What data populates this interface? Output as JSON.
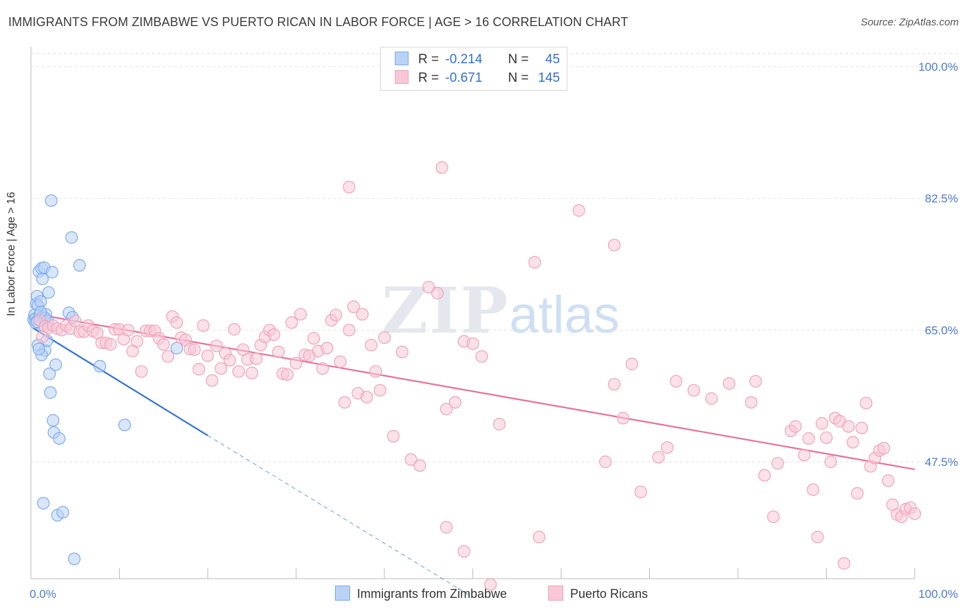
{
  "chart_data": {
    "type": "scatter",
    "title": "IMMIGRANTS FROM ZIMBABWE VS PUERTO RICAN IN LABOR FORCE | AGE > 16 CORRELATION CHART",
    "source": "Source: ZipAtlas.com",
    "ylabel": "In Labor Force | Age > 16",
    "xlabel": "",
    "xlim": [
      0,
      100
    ],
    "ylim": [
      30,
      102
    ],
    "y_ticks": [
      {
        "value": 100.0,
        "label": "100.0%"
      },
      {
        "value": 82.5,
        "label": "82.5%"
      },
      {
        "value": 65.0,
        "label": "65.0%"
      },
      {
        "value": 47.5,
        "label": "47.5%"
      }
    ],
    "x_tick_labels": {
      "min": "0.0%",
      "max": "100.0%"
    },
    "watermark": {
      "zip": "ZIP",
      "atlas": "atlas"
    },
    "series": [
      {
        "name": "Immigrants from Zimbabwe",
        "color": "#7aaaf0",
        "fill": "#b9d2f5",
        "line_color": "#2f6fd3",
        "R": "-0.214",
        "N": "45",
        "trend": {
          "x0": 0.2,
          "y0": 65.3,
          "x1": 20,
          "y1": 51.0,
          "dash_x1": 50,
          "dash_y1": 29.5
        },
        "points": [
          [
            0.3,
            66.4
          ],
          [
            0.4,
            67.0
          ],
          [
            0.5,
            66.5
          ],
          [
            0.6,
            68.5
          ],
          [
            0.7,
            69.5
          ],
          [
            0.8,
            68.3
          ],
          [
            0.9,
            72.8
          ],
          [
            1.0,
            67.0
          ],
          [
            1.1,
            68.8
          ],
          [
            1.2,
            73.2
          ],
          [
            1.3,
            71.8
          ],
          [
            1.4,
            66.8
          ],
          [
            1.5,
            73.3
          ],
          [
            1.6,
            62.3
          ],
          [
            1.7,
            67.1
          ],
          [
            1.8,
            63.6
          ],
          [
            1.9,
            66.2
          ],
          [
            2.0,
            70.0
          ],
          [
            2.1,
            59.2
          ],
          [
            2.2,
            56.7
          ],
          [
            2.3,
            82.2
          ],
          [
            2.4,
            72.7
          ],
          [
            2.5,
            53.0
          ],
          [
            2.6,
            51.4
          ],
          [
            2.8,
            60.4
          ],
          [
            3.0,
            40.4
          ],
          [
            3.2,
            50.6
          ],
          [
            0.8,
            63.0
          ],
          [
            1.2,
            61.7
          ],
          [
            1.3,
            65.7
          ],
          [
            1.4,
            42.0
          ],
          [
            3.6,
            40.8
          ],
          [
            4.3,
            67.3
          ],
          [
            4.6,
            77.3
          ],
          [
            4.7,
            66.7
          ],
          [
            4.9,
            34.6
          ],
          [
            5.5,
            73.6
          ],
          [
            7.8,
            60.2
          ],
          [
            10.6,
            52.4
          ],
          [
            16.5,
            62.6
          ],
          [
            0.5,
            66.0
          ],
          [
            0.9,
            62.5
          ],
          [
            1.6,
            66.6
          ],
          [
            1.1,
            67.4
          ],
          [
            0.7,
            66.1
          ]
        ]
      },
      {
        "name": "Puerto Ricans",
        "color": "#f0a2bb",
        "fill": "#f8c8d6",
        "line_color": "#e76f9a",
        "R": "-0.671",
        "N": "145",
        "trend": {
          "x0": 0.2,
          "y0": 67.2,
          "x1": 100,
          "y1": 46.5
        },
        "points": [
          [
            1.0,
            66.3
          ],
          [
            1.3,
            64.1
          ],
          [
            1.6,
            65.5
          ],
          [
            2.0,
            65.3
          ],
          [
            2.5,
            65.6
          ],
          [
            3.0,
            65.2
          ],
          [
            3.5,
            65.0
          ],
          [
            4.0,
            65.6
          ],
          [
            4.5,
            65.2
          ],
          [
            5.0,
            66.2
          ],
          [
            5.5,
            64.8
          ],
          [
            6.0,
            64.8
          ],
          [
            6.5,
            65.6
          ],
          [
            7.0,
            64.9
          ],
          [
            7.5,
            64.6
          ],
          [
            8.0,
            63.3
          ],
          [
            8.5,
            63.3
          ],
          [
            9.0,
            63.1
          ],
          [
            9.5,
            65.1
          ],
          [
            10.0,
            65.1
          ],
          [
            10.5,
            63.8
          ],
          [
            11.0,
            65.0
          ],
          [
            11.5,
            62.2
          ],
          [
            12.0,
            63.5
          ],
          [
            12.5,
            59.5
          ],
          [
            13.0,
            64.9
          ],
          [
            13.5,
            64.9
          ],
          [
            14.0,
            64.9
          ],
          [
            14.5,
            63.9
          ],
          [
            15.0,
            63.1
          ],
          [
            15.5,
            61.5
          ],
          [
            16.0,
            66.8
          ],
          [
            16.5,
            66.0
          ],
          [
            17.0,
            64.0
          ],
          [
            17.5,
            63.7
          ],
          [
            18.0,
            62.5
          ],
          [
            18.5,
            62.4
          ],
          [
            19.0,
            59.8
          ],
          [
            19.5,
            65.6
          ],
          [
            20.0,
            61.6
          ],
          [
            20.5,
            58.3
          ],
          [
            21.0,
            62.9
          ],
          [
            21.5,
            59.9
          ],
          [
            22.0,
            61.9
          ],
          [
            22.5,
            61.0
          ],
          [
            23.0,
            65.1
          ],
          [
            23.5,
            59.5
          ],
          [
            24.0,
            62.4
          ],
          [
            24.5,
            61.1
          ],
          [
            25.0,
            59.3
          ],
          [
            25.5,
            61.2
          ],
          [
            26.0,
            63.0
          ],
          [
            26.5,
            64.1
          ],
          [
            27.0,
            65.0
          ],
          [
            27.5,
            64.4
          ],
          [
            28.0,
            62.1
          ],
          [
            28.5,
            59.2
          ],
          [
            29.0,
            59.1
          ],
          [
            29.5,
            66.0
          ],
          [
            30.0,
            60.6
          ],
          [
            30.5,
            67.1
          ],
          [
            31.0,
            61.7
          ],
          [
            31.5,
            61.6
          ],
          [
            32.0,
            63.9
          ],
          [
            32.5,
            62.2
          ],
          [
            33.0,
            59.9
          ],
          [
            33.5,
            62.6
          ],
          [
            34.0,
            66.3
          ],
          [
            34.5,
            67.0
          ],
          [
            35.0,
            60.8
          ],
          [
            35.5,
            55.4
          ],
          [
            36.0,
            65.0
          ],
          [
            36.5,
            68.1
          ],
          [
            37.0,
            56.6
          ],
          [
            37.5,
            67.1
          ],
          [
            38.0,
            56.1
          ],
          [
            38.5,
            63.0
          ],
          [
            39.0,
            59.5
          ],
          [
            39.5,
            57.0
          ],
          [
            40.0,
            64.0
          ],
          [
            41.0,
            50.9
          ],
          [
            42.0,
            62.1
          ],
          [
            43.0,
            47.8
          ],
          [
            44.0,
            47.0
          ],
          [
            45.0,
            70.7
          ],
          [
            46.0,
            69.9
          ],
          [
            47.0,
            54.5
          ],
          [
            48.0,
            55.4
          ],
          [
            49.0,
            63.5
          ],
          [
            50.0,
            63.2
          ],
          [
            51.0,
            61.5
          ],
          [
            36.0,
            84.0
          ],
          [
            46.5,
            86.6
          ],
          [
            57.0,
            74.0
          ],
          [
            62.0,
            80.9
          ],
          [
            66.0,
            76.3
          ],
          [
            53.0,
            52.5
          ],
          [
            47.0,
            38.8
          ],
          [
            49.0,
            35.6
          ],
          [
            52.0,
            31.2
          ],
          [
            57.5,
            37.5
          ],
          [
            65.0,
            47.5
          ],
          [
            66.0,
            57.8
          ],
          [
            67.0,
            53.3
          ],
          [
            68.0,
            60.5
          ],
          [
            69.0,
            43.5
          ],
          [
            71.0,
            48.1
          ],
          [
            72.0,
            49.4
          ],
          [
            73.0,
            58.2
          ],
          [
            75.0,
            57.0
          ],
          [
            77.0,
            55.9
          ],
          [
            79.0,
            57.9
          ],
          [
            81.5,
            55.4
          ],
          [
            82.0,
            58.2
          ],
          [
            83.0,
            45.7
          ],
          [
            84.0,
            40.2
          ],
          [
            84.5,
            47.3
          ],
          [
            86.0,
            51.6
          ],
          [
            86.5,
            52.2
          ],
          [
            87.5,
            48.4
          ],
          [
            88.0,
            50.6
          ],
          [
            88.5,
            43.8
          ],
          [
            89.0,
            37.5
          ],
          [
            89.5,
            52.6
          ],
          [
            90.0,
            50.7
          ],
          [
            90.5,
            47.5
          ],
          [
            91.0,
            53.3
          ],
          [
            91.5,
            52.9
          ],
          [
            92.0,
            34.0
          ],
          [
            92.5,
            52.2
          ],
          [
            93.0,
            50.1
          ],
          [
            93.5,
            43.3
          ],
          [
            94.0,
            52.0
          ],
          [
            94.5,
            55.3
          ],
          [
            95.0,
            46.9
          ],
          [
            95.5,
            48.0
          ],
          [
            96.0,
            49.0
          ],
          [
            96.5,
            49.3
          ],
          [
            97.0,
            45.0
          ],
          [
            97.5,
            41.8
          ],
          [
            98.0,
            40.5
          ],
          [
            98.5,
            40.2
          ],
          [
            99.0,
            41.2
          ],
          [
            99.5,
            41.4
          ],
          [
            100.0,
            40.6
          ]
        ]
      }
    ],
    "legend_top": {
      "r_label": "R =",
      "n_label": "N ="
    }
  }
}
